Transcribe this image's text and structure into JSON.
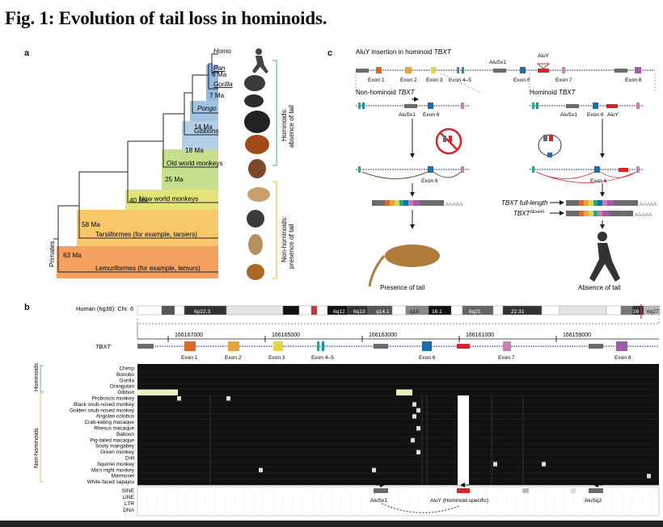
{
  "figure_title": "Fig. 1: Evolution of tail loss in hominoids.",
  "panels": {
    "a": "a",
    "b": "b",
    "c": "c"
  },
  "panel_a": {
    "taxa": [
      "Homo",
      "Pan",
      "Gorilla",
      "Pongo",
      "Gibbons",
      "Old world monkeys",
      "New world monkeys",
      "Tarsiiformes (for example, tarsiers)",
      "Lemuriformes (for example, lemurs)"
    ],
    "node_ages": [
      "6 Ma",
      "7 Ma",
      "14 Ma",
      "18 Ma",
      "25 Ma",
      "40 Ma",
      "58 Ma",
      "63 Ma"
    ],
    "root_label": "Primates",
    "hominoid_bracket": [
      "Hominoids:",
      "absence of tail"
    ],
    "nonhominoid_bracket": [
      "Non-hominoids:",
      "presence of tail"
    ]
  },
  "panel_b": {
    "chrom_label": "Human (hg38): Chr. 6",
    "bands": [
      "6p22.3",
      "6q12",
      "6q13",
      "q14.1",
      "q15",
      "16.1",
      "6q21",
      "22.31",
      "26",
      "6q27"
    ],
    "coordinates": [
      "166167000",
      "166165000",
      "166163000",
      "166161000",
      "166159000"
    ],
    "gene": "TBXT",
    "exons": [
      "Exon 1",
      "Exon 2",
      "Exon 3",
      "Exon 4–5",
      "Exon 6",
      "Exon 7",
      "Exon 8"
    ],
    "group_hominoids": "Hominoids",
    "group_nonhominoids": "Non-hominoids",
    "species": [
      "Chimp",
      "Bonobo",
      "Gorilla",
      "Orangutan",
      "Gibbon",
      "Proboscis monkey",
      "Black snub-nosed monkey",
      "Golden snub-nosed monkey",
      "Angolan colobus",
      "Crab-eating macaque",
      "Rhesus macaque",
      "Baboon",
      "Pig-tailed macaque",
      "Sooty mangabey",
      "Green monkey",
      "Drill",
      "Squirrel monkey",
      "Ma's night monkey",
      "Marmoset",
      "White-faced sapajou"
    ],
    "repeat_tracks": [
      "SINE",
      "LINE",
      "LTR",
      "DNA"
    ],
    "repeat_labels": [
      "AluSx1",
      "AluY (Hominoid-specific)",
      "AluSq2"
    ]
  },
  "panel_c": {
    "title_prefix": "AluY insertion in hominoid ",
    "gene": "TBXT",
    "top_labels": [
      "AluSx1",
      "AluY"
    ],
    "top_exons": [
      "Exon 1",
      "Exon 2",
      "Exon 3",
      "Exon 4–5",
      "Exon 6",
      "Exon 7",
      "Exon 8"
    ],
    "non_hominoid_title": "Non-hominoid ",
    "hominoid_title": "Hominoid ",
    "alu_labels": [
      "AluSx1",
      "Exon 6",
      "AluSx1",
      "Exon 6",
      "AluY"
    ],
    "exon6": "Exon 6",
    "poly_a": "AAAAA",
    "full_length": "TBXT full-length",
    "delta_name": "TBXT",
    "delta_sup": "ΔExon6",
    "presence": "Presence of tail",
    "absence": "Absence of tail"
  },
  "colors": {
    "exon1": "#d9692b",
    "exon2": "#e8a33a",
    "exon3": "#e6d54a",
    "exon45": "#2aa57e",
    "exon6": "#1b6fa8",
    "exon7": "#c97fb4",
    "exon8": "#a05ba8",
    "aluy": "#d8232a",
    "gray_block": "#6b6b6b",
    "tree_blue": "#9dbde0",
    "tree_green": "#b7d77a",
    "tree_yellow": "#f6d36a",
    "tree_orange": "#f2a05a"
  }
}
